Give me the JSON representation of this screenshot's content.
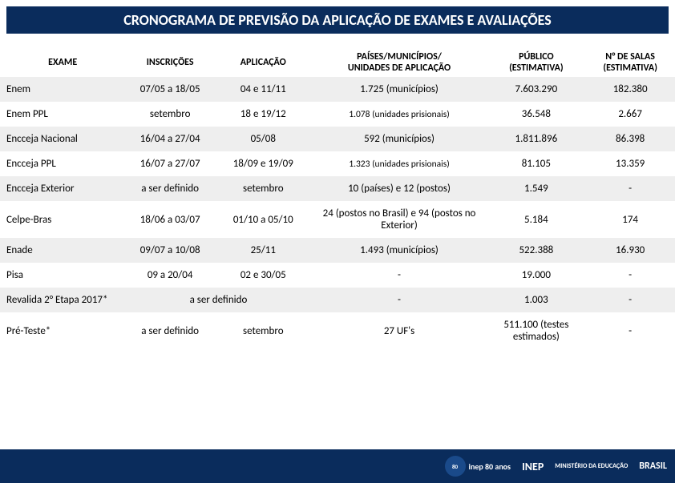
{
  "title": "CRONOGRAMA DE PREVISÃO DA APLICAÇÃO DE EXAMES E AVALIAÇÕES",
  "columns": {
    "exame": "EXAME",
    "inscricoes": "INSCRIÇÕES",
    "aplicacao": "APLICAÇÃO",
    "paises_l1": "PAÍSES/MUNICÍPIOS/",
    "paises_l2": "UNIDADES DE APLICAÇÃO",
    "publico_l1": "PÚBLICO",
    "publico_l2": "(ESTIMATIVA)",
    "salas_l1": "N° DE SALAS",
    "salas_l2": "(ESTIMATIVA)"
  },
  "rows": [
    {
      "exame": "Enem",
      "inscricoes": "07/05 a 18/05",
      "aplicacao": "04 e 11/11",
      "paises": "1.725 (municípios)",
      "publico": "7.603.290",
      "salas": "182.380",
      "stripe": true
    },
    {
      "exame": "Enem PPL",
      "inscricoes": "setembro",
      "aplicacao": "18 e 19/12",
      "paises": "1.078 (unidades prisionais)",
      "publico": "36.548",
      "salas": "2.667",
      "stripe": false,
      "paises_small": true
    },
    {
      "exame": "Encceja Nacional",
      "inscricoes": "16/04 a 27/04",
      "aplicacao": "05/08",
      "paises": "592 (municípios)",
      "publico": "1.811.896",
      "salas": "86.398",
      "stripe": true
    },
    {
      "exame": "Encceja PPL",
      "inscricoes": "16/07 a 27/07",
      "aplicacao": "18/09 e 19/09",
      "paises": "1.323 (unidades prisionais)",
      "publico": "81.105",
      "salas": "13.359",
      "stripe": false,
      "paises_small": true
    },
    {
      "exame": "Encceja Exterior",
      "inscricoes": "a ser definido",
      "aplicacao": "setembro",
      "paises": "10 (países) e 12 (postos)",
      "publico": "1.549",
      "salas": "-",
      "stripe": true
    },
    {
      "exame": "Celpe-Bras",
      "inscricoes": "18/06 a 03/07",
      "aplicacao": "01/10 a 05/10",
      "paises": "24 (postos no Brasil) e 94 (postos no Exterior)",
      "publico": "5.184",
      "salas": "174",
      "stripe": false
    },
    {
      "exame": "Enade",
      "inscricoes": "09/07 a 10/08",
      "aplicacao": "25/11",
      "paises": "1.493 (municípios)",
      "publico": "522.388",
      "salas": "16.930",
      "stripe": true
    },
    {
      "exame": "Pisa",
      "inscricoes": "09 a 20/04",
      "aplicacao": "02 e 30/05",
      "paises": "-",
      "publico": "19.000",
      "salas": "-",
      "stripe": false
    },
    {
      "exame": "Revalida 2° Etapa 2017*",
      "merged_insc_aplic": "a ser definido",
      "paises": "-",
      "publico": "1.003",
      "salas": "-",
      "stripe": true
    },
    {
      "exame": "Pré-Teste*",
      "inscricoes": "a ser definido",
      "aplicacao": "setembro",
      "paises": "27 UF's",
      "publico": "511.100 (testes estimados)",
      "salas": "-",
      "stripe": false
    }
  ],
  "footer": {
    "inep80": "inep 80 anos",
    "inep": "INEP",
    "mec": "MINISTÉRIO DA EDUCAÇÃO",
    "brasil": "BRASIL"
  },
  "colors": {
    "header_bg": "#0a2c5c",
    "stripe_bg": "#eeeeee",
    "text": "#000000",
    "title_text": "#ffffff"
  }
}
